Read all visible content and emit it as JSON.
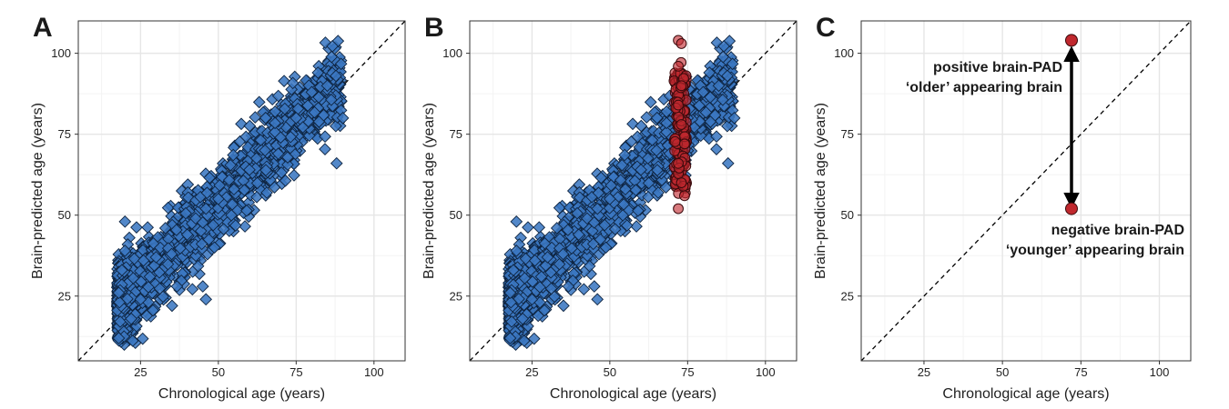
{
  "chart_data": [
    {
      "panel": "A",
      "type": "scatter",
      "xlabel": "Chronological age (years)",
      "ylabel": "Brain-predicted age (years)",
      "xlim": [
        5,
        110
      ],
      "ylim": [
        5,
        110
      ],
      "xticks": [
        25,
        50,
        75,
        100
      ],
      "yticks": [
        25,
        50,
        75,
        100
      ],
      "grid": true,
      "reference_line": "identity (y = x), dashed",
      "series": [
        {
          "marker": "diamond",
          "color": "#3b78c2",
          "distribution": "approx. 2500 points, x from 18 to 90, y ≈ 0.97·x + 6 with sd ≈ 6",
          "points": [
            [
              18,
              12
            ],
            [
              18,
              26
            ],
            [
              19,
              33
            ],
            [
              20,
              48
            ],
            [
              20,
              39
            ],
            [
              22,
              18
            ],
            [
              25,
              24
            ],
            [
              28,
              31
            ],
            [
              30,
              37
            ],
            [
              33,
              46
            ],
            [
              35,
              38
            ],
            [
              40,
              44
            ],
            [
              45,
              28
            ],
            [
              46,
              24
            ],
            [
              46,
              52
            ],
            [
              50,
              55
            ],
            [
              55,
              58
            ],
            [
              60,
              64
            ],
            [
              65,
              70
            ],
            [
              70,
              74
            ],
            [
              75,
              80
            ],
            [
              80,
              88
            ],
            [
              82,
              94
            ],
            [
              85,
              90
            ],
            [
              88,
              66
            ],
            [
              90,
              80
            ]
          ]
        }
      ]
    },
    {
      "panel": "B",
      "type": "scatter",
      "xlabel": "Chronological age (years)",
      "ylabel": "Brain-predicted age (years)",
      "xlim": [
        5,
        110
      ],
      "ylim": [
        5,
        110
      ],
      "xticks": [
        25,
        50,
        75,
        100
      ],
      "yticks": [
        25,
        50,
        75,
        100
      ],
      "grid": true,
      "reference_line": "identity (y = x), dashed",
      "series": [
        {
          "marker": "diamond",
          "color": "#3b78c2",
          "distribution": "same sample as panel A"
        },
        {
          "marker": "circle",
          "color": "#c0282e",
          "distribution": "approx. 150 points, x from 70 to 75, y from 52 to 104",
          "points": [
            [
              72,
              104
            ],
            [
              73,
              103
            ],
            [
              72,
              96
            ],
            [
              73,
              90
            ],
            [
              72,
              84
            ],
            [
              73,
              78
            ],
            [
              74,
              72
            ],
            [
              72,
              66
            ],
            [
              73,
              60
            ],
            [
              74,
              56
            ],
            [
              72,
              52
            ]
          ]
        }
      ]
    },
    {
      "panel": "C",
      "type": "scatter",
      "xlabel": "Chronological age (years)",
      "ylabel": "Brain-predicted age (years)",
      "xlim": [
        5,
        110
      ],
      "ylim": [
        5,
        110
      ],
      "xticks": [
        25,
        50,
        75,
        100
      ],
      "yticks": [
        25,
        50,
        75,
        100
      ],
      "grid": true,
      "reference_line": "identity (y = x), dashed",
      "series": [
        {
          "marker": "circle",
          "color": "#c0282e",
          "points": [
            [
              72,
              104
            ],
            [
              72,
              52
            ]
          ]
        }
      ],
      "annotations": [
        {
          "line1": "positive brain-PAD",
          "line2": "‘older’ appearing brain"
        },
        {
          "line1": "negative brain-PAD",
          "line2": "‘younger’ appearing brain"
        }
      ]
    }
  ],
  "colors": {
    "blue_fill": "#3b78c2",
    "red_fill": "#c0282e",
    "grid": "#ebebeb",
    "panel_border": "#333333"
  }
}
